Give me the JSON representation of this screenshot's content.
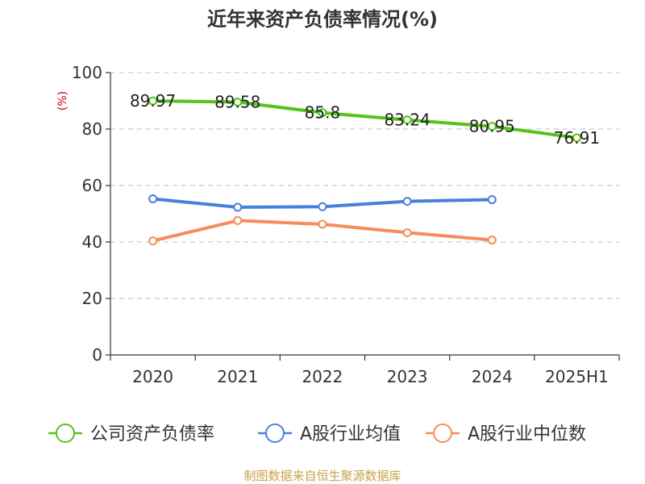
{
  "chart_data": {
    "type": "line",
    "title": "近年来资产负债率情况(%)",
    "unit_label": "(%)",
    "categories": [
      "2020",
      "2021",
      "2022",
      "2023",
      "2024",
      "2025H1"
    ],
    "ylim": [
      0,
      100
    ],
    "yticks": [
      0,
      20,
      40,
      60,
      80,
      100
    ],
    "grid": true,
    "legend_position": "bottom",
    "series": [
      {
        "name": "公司资产负债率",
        "color": "#52c41a",
        "values": [
          89.97,
          89.58,
          85.8,
          83.24,
          80.95,
          76.91
        ],
        "labels": [
          "89.97",
          "89.58",
          "85.8",
          "83.24",
          "80.95",
          "76.91"
        ],
        "show_labels": true
      },
      {
        "name": "A股行业均值",
        "color": "#4a7fdb",
        "values": [
          55.3,
          52.3,
          52.5,
          54.4,
          55.0,
          null
        ],
        "show_labels": false
      },
      {
        "name": "A股行业中位数",
        "color": "#f78c5c",
        "values": [
          40.4,
          47.6,
          46.3,
          43.3,
          40.7,
          null
        ],
        "show_labels": false
      }
    ],
    "source": "制图数据来自恒生聚源数据库"
  }
}
